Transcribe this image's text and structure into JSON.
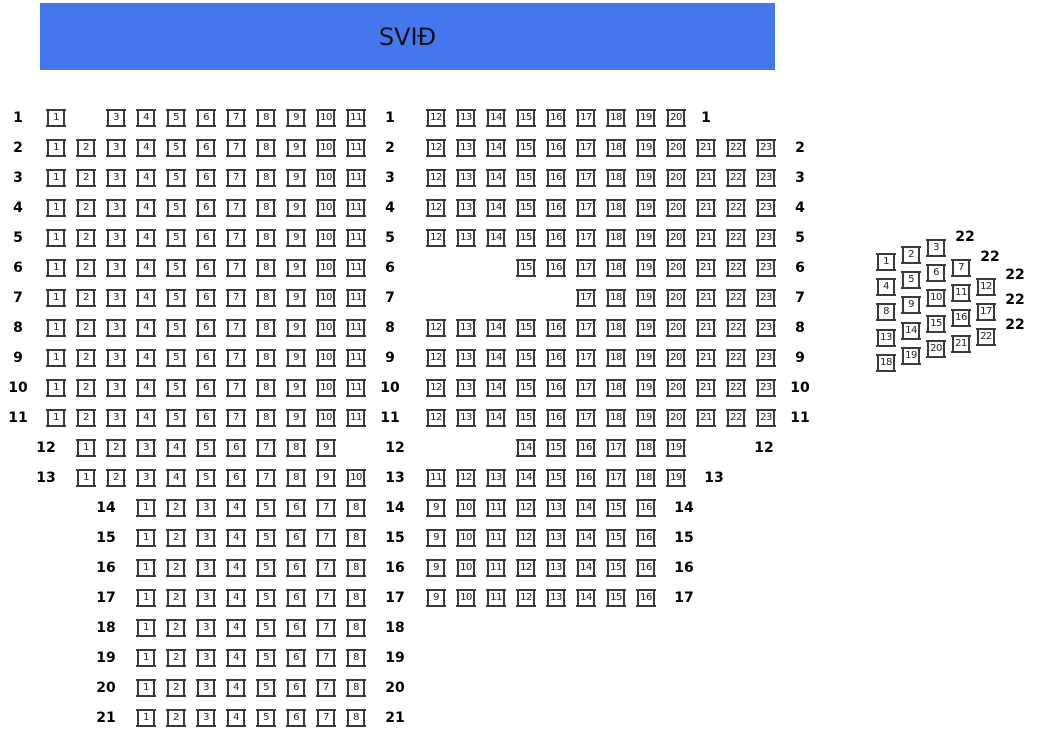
{
  "stage": {
    "label": "SVIÐ",
    "color": "#4477ee"
  },
  "main": {
    "rows": [
      {
        "row": "1",
        "left": [
          1,
          3,
          4,
          5,
          6,
          7,
          8,
          9,
          10,
          11
        ],
        "right": [
          12,
          13,
          14,
          15,
          16,
          17,
          18,
          19,
          20
        ]
      },
      {
        "row": "2",
        "left": [
          1,
          2,
          3,
          4,
          5,
          6,
          7,
          8,
          9,
          10,
          11
        ],
        "right": [
          12,
          13,
          14,
          15,
          16,
          17,
          18,
          19,
          20,
          21,
          22,
          23
        ]
      },
      {
        "row": "3",
        "left": [
          1,
          2,
          3,
          4,
          5,
          6,
          7,
          8,
          9,
          10,
          11
        ],
        "right": [
          12,
          13,
          14,
          15,
          16,
          17,
          18,
          19,
          20,
          21,
          22,
          23
        ]
      },
      {
        "row": "4",
        "left": [
          1,
          2,
          3,
          4,
          5,
          6,
          7,
          8,
          9,
          10,
          11
        ],
        "right": [
          12,
          13,
          14,
          15,
          16,
          17,
          18,
          19,
          20,
          21,
          22,
          23
        ]
      },
      {
        "row": "5",
        "left": [
          1,
          2,
          3,
          4,
          5,
          6,
          7,
          8,
          9,
          10,
          11
        ],
        "right": [
          12,
          13,
          14,
          15,
          16,
          17,
          18,
          19,
          20,
          21,
          22,
          23
        ]
      },
      {
        "row": "6",
        "left": [
          1,
          2,
          3,
          4,
          5,
          6,
          7,
          8,
          9,
          10,
          11
        ],
        "right": [
          15,
          16,
          17,
          18,
          19,
          20,
          21,
          22,
          23
        ]
      },
      {
        "row": "7",
        "left": [
          1,
          2,
          3,
          4,
          5,
          6,
          7,
          8,
          9,
          10,
          11
        ],
        "right": [
          17,
          18,
          19,
          20,
          21,
          22,
          23
        ]
      },
      {
        "row": "8",
        "left": [
          1,
          2,
          3,
          4,
          5,
          6,
          7,
          8,
          9,
          10,
          11
        ],
        "right": [
          12,
          13,
          14,
          15,
          16,
          17,
          18,
          19,
          20,
          21,
          22,
          23
        ]
      },
      {
        "row": "9",
        "left": [
          1,
          2,
          3,
          4,
          5,
          6,
          7,
          8,
          9,
          10,
          11
        ],
        "right": [
          12,
          13,
          14,
          15,
          16,
          17,
          18,
          19,
          20,
          21,
          22,
          23
        ]
      },
      {
        "row": "10",
        "left": [
          1,
          2,
          3,
          4,
          5,
          6,
          7,
          8,
          9,
          10,
          11
        ],
        "right": [
          12,
          13,
          14,
          15,
          16,
          17,
          18,
          19,
          20,
          21,
          22,
          23
        ]
      },
      {
        "row": "11",
        "left": [
          1,
          2,
          3,
          4,
          5,
          6,
          7,
          8,
          9,
          10,
          11
        ],
        "right": [
          12,
          13,
          14,
          15,
          16,
          17,
          18,
          19,
          20,
          21,
          22,
          23
        ]
      },
      {
        "row": "12",
        "left": [
          1,
          2,
          3,
          4,
          5,
          6,
          7,
          8,
          9
        ],
        "right": [
          14,
          15,
          16,
          17,
          18,
          19
        ]
      },
      {
        "row": "13",
        "left": [
          1,
          2,
          3,
          4,
          5,
          6,
          7,
          8,
          9,
          10
        ],
        "right": [
          11,
          12,
          13,
          14,
          15,
          16,
          17,
          18,
          19
        ]
      },
      {
        "row": "14",
        "left": [
          1,
          2,
          3,
          4,
          5,
          6,
          7,
          8
        ],
        "right": [
          9,
          10,
          11,
          12,
          13,
          14,
          15,
          16
        ]
      },
      {
        "row": "15",
        "left": [
          1,
          2,
          3,
          4,
          5,
          6,
          7,
          8
        ],
        "right": [
          9,
          10,
          11,
          12,
          13,
          14,
          15,
          16
        ]
      },
      {
        "row": "16",
        "left": [
          1,
          2,
          3,
          4,
          5,
          6,
          7,
          8
        ],
        "right": [
          9,
          10,
          11,
          12,
          13,
          14,
          15,
          16
        ]
      },
      {
        "row": "17",
        "left": [
          1,
          2,
          3,
          4,
          5,
          6,
          7,
          8
        ],
        "right": [
          9,
          10,
          11,
          12,
          13,
          14,
          15,
          16
        ]
      },
      {
        "row": "18",
        "left": [
          1,
          2,
          3,
          4,
          5,
          6,
          7,
          8
        ],
        "right": []
      },
      {
        "row": "19",
        "left": [
          1,
          2,
          3,
          4,
          5,
          6,
          7,
          8
        ],
        "right": []
      },
      {
        "row": "20",
        "left": [
          1,
          2,
          3,
          4,
          5,
          6,
          7,
          8
        ],
        "right": []
      },
      {
        "row": "21",
        "left": [
          1,
          2,
          3,
          4,
          5,
          6,
          7,
          8
        ],
        "right": []
      }
    ]
  },
  "side": {
    "row_labels": [
      "22",
      "22",
      "22",
      "22",
      "22"
    ],
    "columns": [
      [
        1,
        4,
        8,
        13,
        18
      ],
      [
        2,
        5,
        9,
        14,
        19
      ],
      [
        3,
        6,
        10,
        15,
        20
      ],
      [
        7,
        11,
        16,
        21
      ],
      [
        12,
        17,
        22
      ]
    ]
  }
}
